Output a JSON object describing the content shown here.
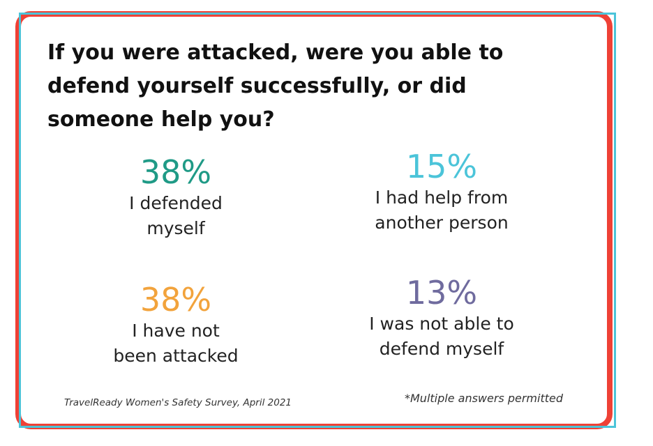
{
  "colors": {
    "frame_outer": "#ef4136",
    "frame_inner": "#4bc4d9"
  },
  "title": "If you were attacked, were you able to defend yourself successfully, or did someone help you?",
  "chart_data": {
    "type": "table",
    "title": "If you were attacked, were you able to defend yourself successfully, or did someone help you?",
    "series": [
      {
        "value": 38,
        "display": "38%",
        "label": "I defended\n myself",
        "color": "#1f9a86"
      },
      {
        "value": 15,
        "display": "15%",
        "label": "I had help from\nanother person",
        "color": "#4bc4d9"
      },
      {
        "value": 38,
        "display": "38%",
        "label": "I have not\nbeen attacked",
        "color": "#f2a33c"
      },
      {
        "value": 13,
        "display": "13%",
        "label": "I was not able to\n defend myself",
        "color": "#6f6b9e"
      }
    ]
  },
  "source": "TravelReady Women's Safety Survey, April 2021",
  "footnote": "*Multiple answers permitted"
}
